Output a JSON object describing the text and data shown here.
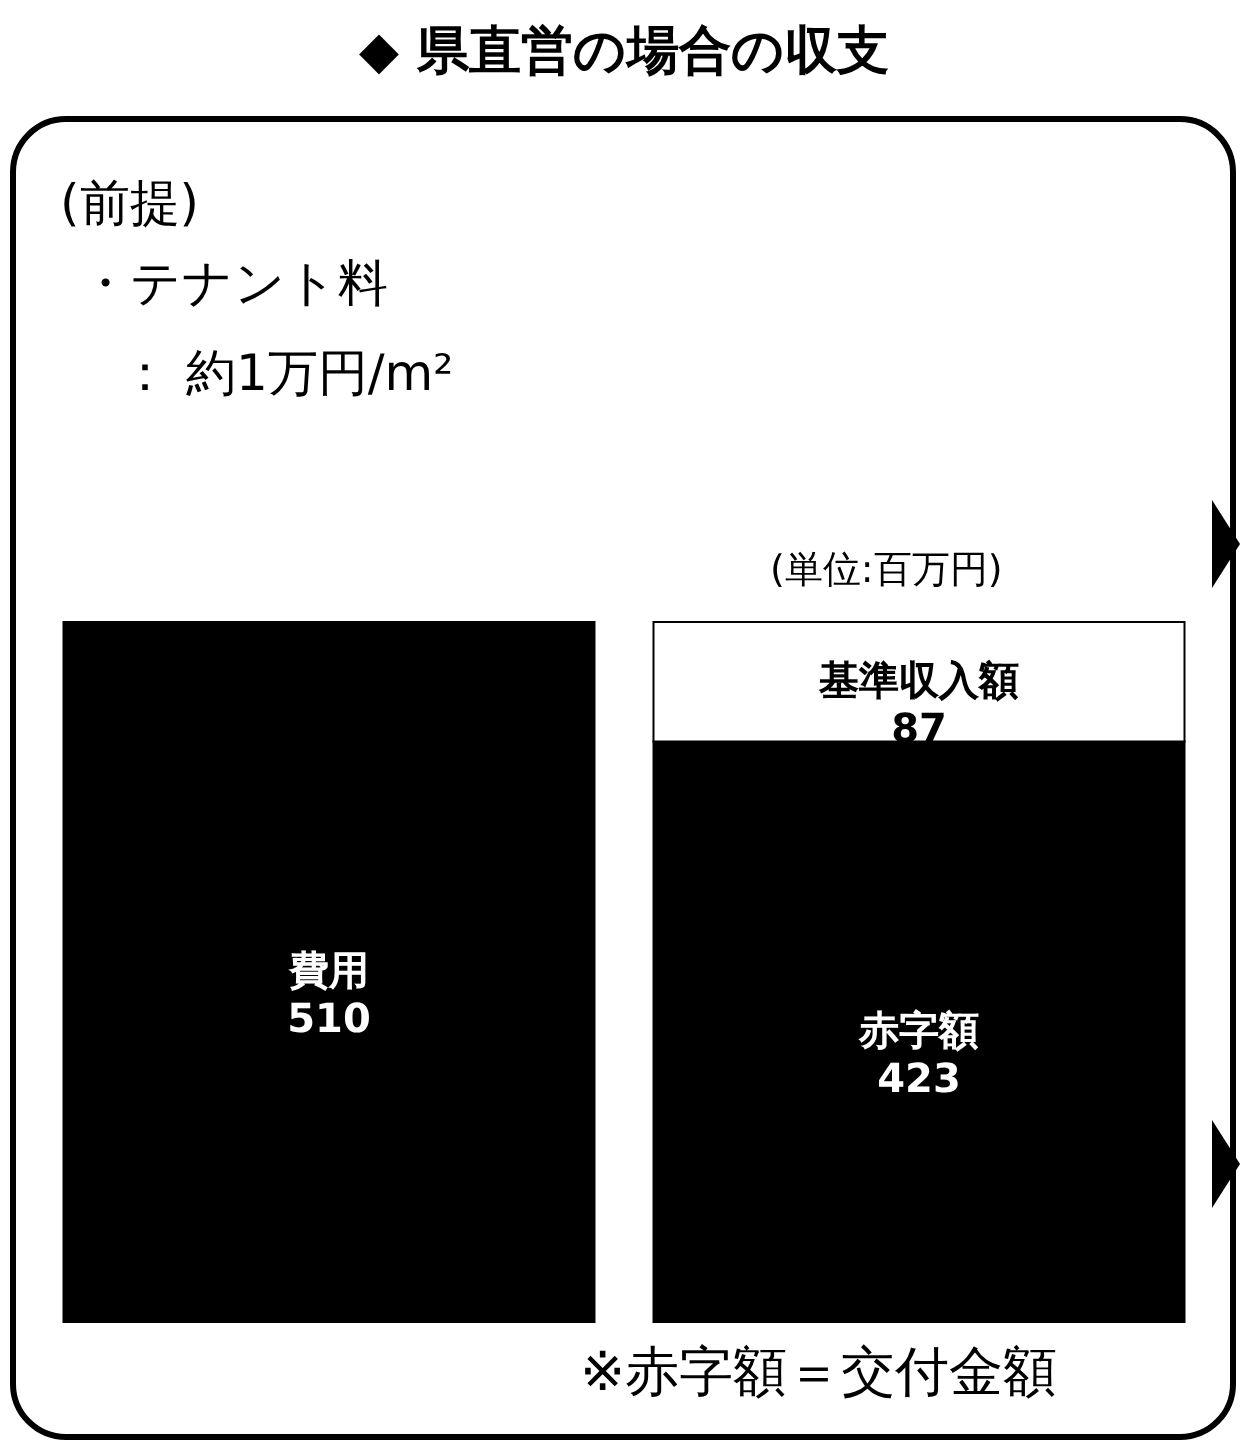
{
  "chart_data": {
    "type": "bar",
    "title": "◆ 県直営の場合の収支",
    "stacked": true,
    "data_labels": true,
    "categories": [
      null,
      null
    ],
    "series": [
      {
        "name": "費用",
        "color": "#000000",
        "values": [
          510,
          null
        ]
      },
      {
        "name": "赤字額",
        "color": "#000000",
        "values": [
          null,
          423
        ]
      },
      {
        "name": "基準収入額",
        "color": "#ffffff",
        "values": [
          null,
          87
        ]
      }
    ],
    "annotations": [
      "(前提)",
      "・テナント料",
      "： 約1万円/m²",
      "(単位:百万円)",
      "※赤字額＝交付金額"
    ]
  }
}
